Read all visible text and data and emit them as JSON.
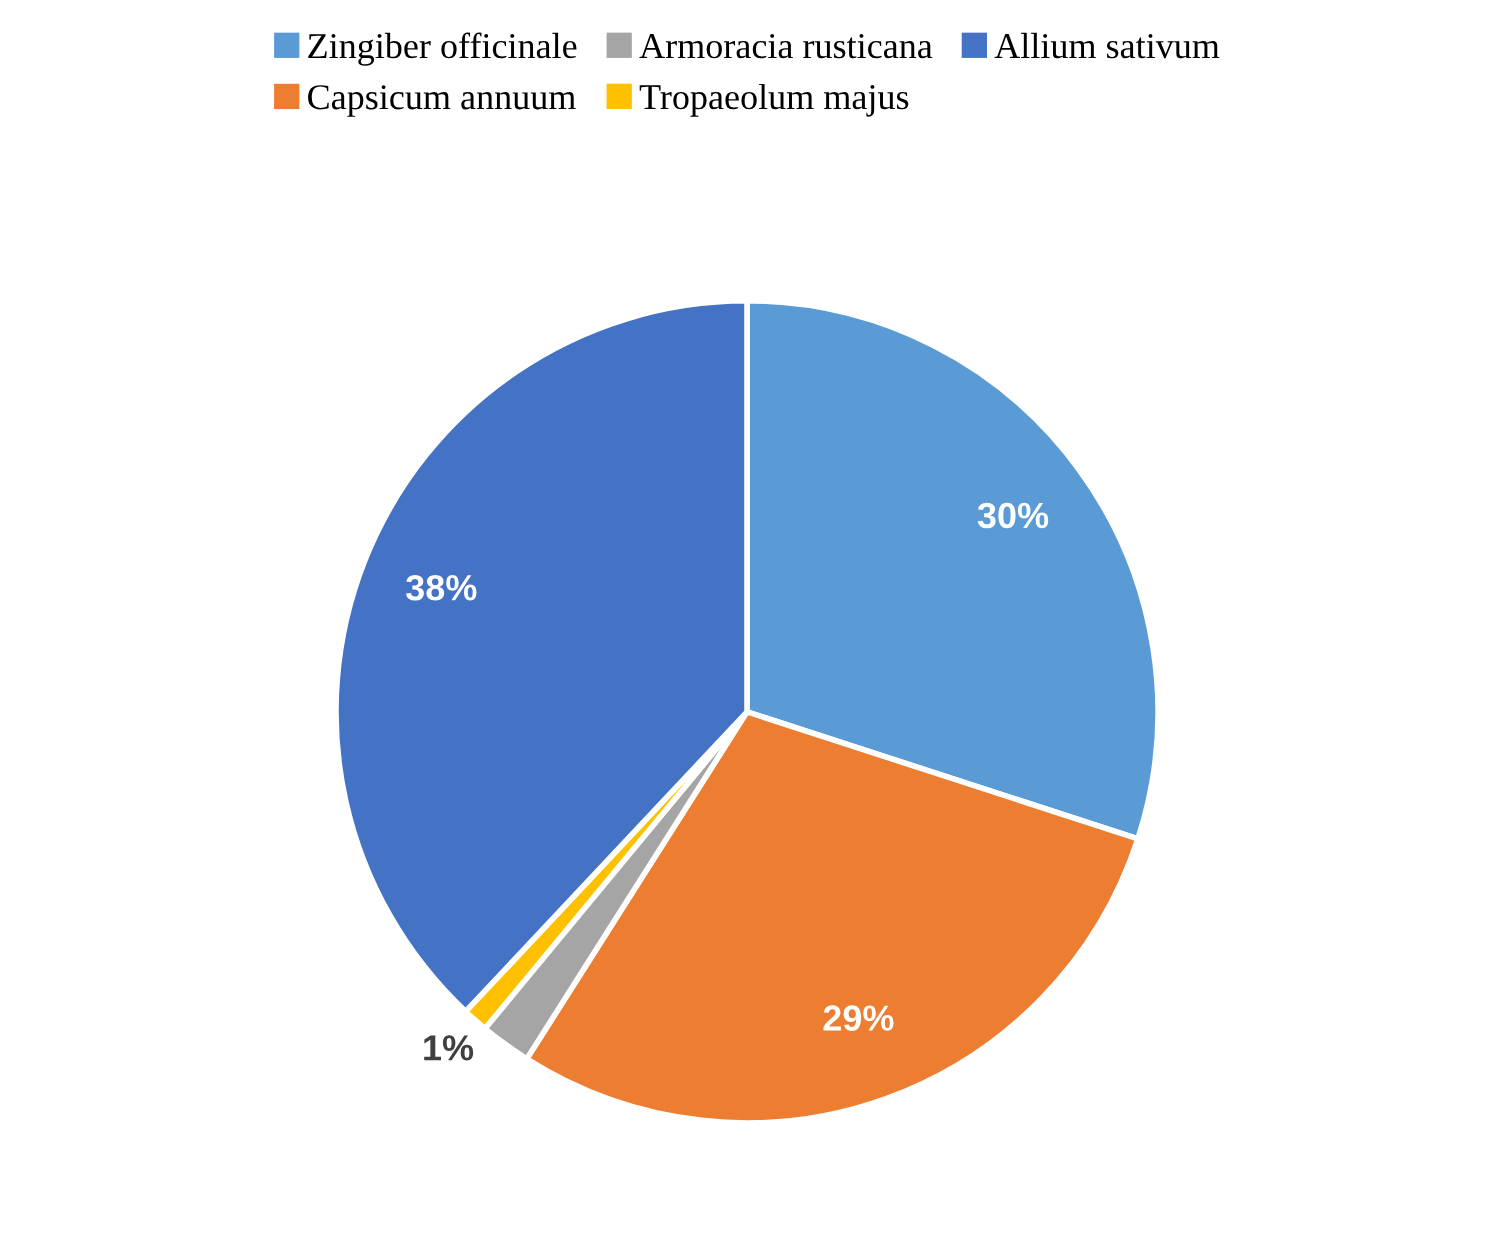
{
  "chart_data": {
    "type": "pie",
    "categories": [
      "Zingiber officinale",
      "Capsicum annuum",
      "Armoracia rusticana",
      "Tropaeolum majus",
      "Allium sativum"
    ],
    "values": [
      30,
      29,
      2,
      1,
      38
    ],
    "colors": [
      "#5b9bd5",
      "#ed7d31",
      "#a5a5a5",
      "#ffc000",
      "#4472c4"
    ],
    "value_labels": [
      "30%",
      "29%",
      null,
      "1%",
      "38%"
    ],
    "legend": "top"
  }
}
